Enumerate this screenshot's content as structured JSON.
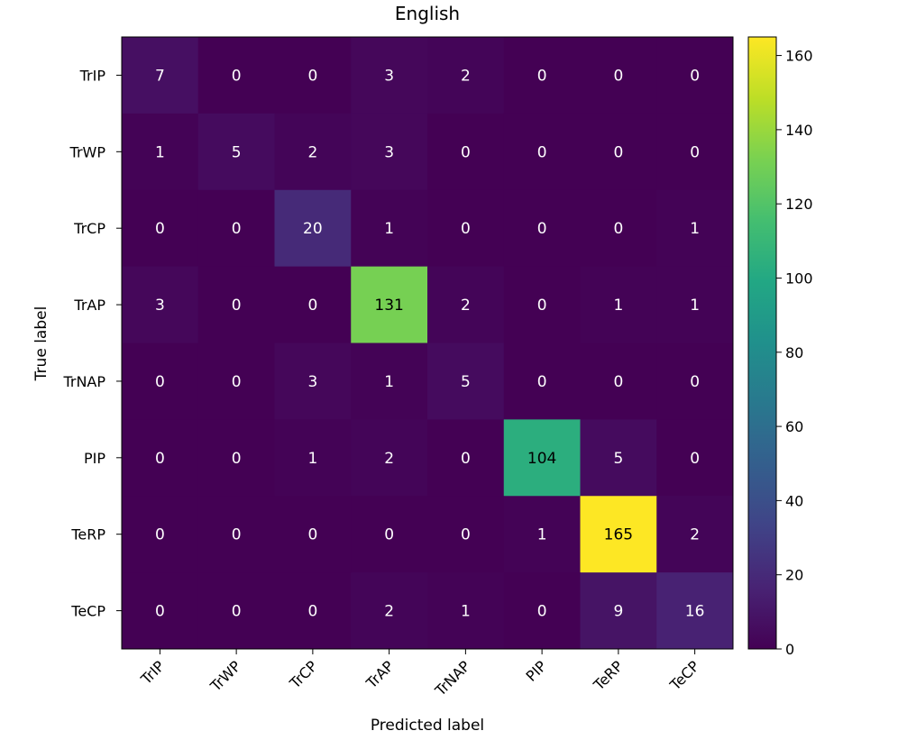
{
  "chart_data": {
    "type": "heatmap",
    "title": "English",
    "xlabel": "Predicted label",
    "ylabel": "True label",
    "x_categories": [
      "TrIP",
      "TrWP",
      "TrCP",
      "TrAP",
      "TrNAP",
      "PIP",
      "TeRP",
      "TeCP"
    ],
    "y_categories": [
      "TrIP",
      "TrWP",
      "TrCP",
      "TrAP",
      "TrNAP",
      "PIP",
      "TeRP",
      "TeCP"
    ],
    "values": [
      [
        7,
        0,
        0,
        3,
        2,
        0,
        0,
        0
      ],
      [
        1,
        5,
        2,
        3,
        0,
        0,
        0,
        0
      ],
      [
        0,
        0,
        20,
        1,
        0,
        0,
        0,
        1
      ],
      [
        3,
        0,
        0,
        131,
        2,
        0,
        1,
        1
      ],
      [
        0,
        0,
        3,
        1,
        5,
        0,
        0,
        0
      ],
      [
        0,
        0,
        1,
        2,
        0,
        104,
        5,
        0
      ],
      [
        0,
        0,
        0,
        0,
        0,
        1,
        165,
        2
      ],
      [
        0,
        0,
        0,
        2,
        1,
        0,
        9,
        16
      ]
    ],
    "colormap": "viridis",
    "vmin": 0,
    "vmax": 165,
    "colorbar_ticks": [
      0,
      20,
      40,
      60,
      80,
      100,
      120,
      140,
      160
    ]
  }
}
